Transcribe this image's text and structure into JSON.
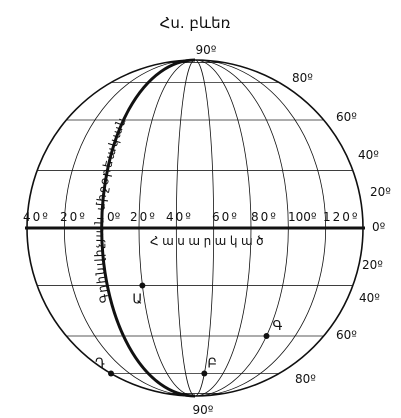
{
  "title": "Հս. բևեռ",
  "equator_label": "Հասարակած",
  "prime_meridian_label": "Գրինվիչյան միջօրեական",
  "top_latitude": "90º",
  "bottom_latitude": "90º",
  "latitude_labels_north": [
    "80º",
    "60º",
    "40º",
    "20º"
  ],
  "latitude_labels_south": [
    "20º",
    "40º",
    "60º",
    "80º"
  ],
  "equator_degree": "0º",
  "longitude_labels": [
    "40º",
    "20º",
    "0º",
    "20º",
    "40º",
    "60º",
    "80º",
    "100º",
    "120º"
  ],
  "points": [
    {
      "label": "Ա",
      "lon": 20,
      "lat": -20
    },
    {
      "label": "Բ",
      "lon": 60,
      "lat": -60
    },
    {
      "label": "Գ",
      "lon": 100,
      "lat": -40
    },
    {
      "label": "Դ",
      "lon": -40,
      "lat": -60
    }
  ]
}
